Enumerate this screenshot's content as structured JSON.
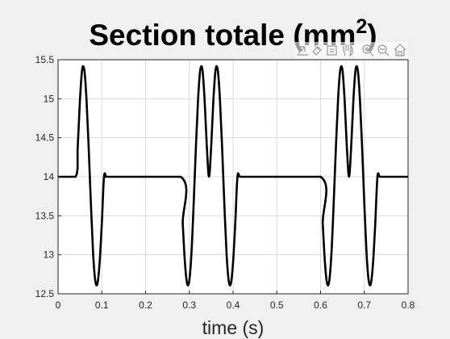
{
  "chart_data": {
    "type": "line",
    "title": "Section totale (mm",
    "title_superscript": "2",
    "title_suffix": ")",
    "xlabel": "time (s)",
    "ylabel": "",
    "xlim": [
      0,
      0.8
    ],
    "ylim": [
      12.5,
      15.5
    ],
    "xticks": [
      0,
      0.1,
      0.2,
      0.3,
      0.4,
      0.5,
      0.6,
      0.7,
      0.8
    ],
    "xtick_labels": [
      "0",
      "0.1",
      "0.2",
      "0.3",
      "0.4",
      "0.5",
      "0.6",
      "0.7",
      "0.8"
    ],
    "yticks": [
      12.5,
      13,
      13.5,
      14,
      14.5,
      15,
      15.5
    ],
    "ytick_labels": [
      "12.5",
      "13",
      "13.5",
      "14",
      "14.5",
      "15",
      "15.5"
    ],
    "grid": true,
    "line_color": "#000000",
    "series": [
      {
        "x": [
          0,
          0.04,
          0.045,
          0.05,
          0.055,
          0.06,
          0.065,
          0.07,
          0.075,
          0.08,
          0.085,
          0.09,
          0.095,
          0.1,
          0.105,
          0.11,
          0.115,
          0.12,
          0.28,
          0.285,
          0.29,
          0.295,
          0.3,
          0.305,
          0.31,
          0.315,
          0.32,
          0.325,
          0.33,
          0.335,
          0.34,
          0.345,
          0.35,
          0.355,
          0.36,
          0.365,
          0.37,
          0.375,
          0.38,
          0.385,
          0.39,
          0.395,
          0.4,
          0.405,
          0.41,
          0.415,
          0.42,
          0.425,
          0.43,
          0.435,
          0.44,
          0.6,
          0.605,
          0.61,
          0.615,
          0.62,
          0.625,
          0.63,
          0.635,
          0.64,
          0.645,
          0.65,
          0.655,
          0.66,
          0.665,
          0.67,
          0.675,
          0.68,
          0.685,
          0.69,
          0.695,
          0.7,
          0.705,
          0.71,
          0.715,
          0.72,
          0.725,
          0.73,
          0.735,
          0.74,
          0.745,
          0.75,
          0.755,
          0.76,
          0.8
        ],
        "y": [
          14,
          14,
          14.39,
          14.98,
          15.37,
          15.37,
          14.99,
          14.37,
          13.66,
          13.03,
          12.67,
          12.63,
          12.9,
          13.4,
          14.0,
          14.0,
          14.0,
          14.0,
          14.0,
          13.4,
          12.9,
          12.63,
          12.67,
          13.03,
          13.66,
          14.37,
          14.99,
          15.37,
          15.37,
          14.98,
          14.39,
          14.0,
          14.39,
          14.98,
          15.37,
          15.37,
          14.99,
          14.37,
          13.66,
          13.03,
          12.67,
          12.63,
          12.9,
          13.4,
          14.0,
          14.0,
          14.0,
          14.0,
          14.0,
          14.0,
          14.0,
          14.0,
          13.4,
          12.9,
          12.63,
          12.67,
          13.03,
          13.66,
          14.37,
          14.99,
          15.37,
          15.37,
          14.98,
          14.39,
          14.0,
          14.39,
          14.98,
          15.37,
          15.37,
          14.99,
          14.37,
          13.66,
          13.03,
          12.67,
          12.63,
          12.9,
          13.4,
          14.0,
          14.0,
          14.0,
          14.0,
          14.0,
          14.0,
          14.0,
          14.0
        ]
      }
    ]
  },
  "toolbar": {
    "icons": [
      "export-icon",
      "brush-icon",
      "datatip-icon",
      "pan-icon",
      "zoom-in-icon",
      "zoom-out-icon",
      "home-icon"
    ]
  },
  "colors": {
    "figure_background": "#f0f0f0",
    "axes_background": "#ffffff",
    "grid": "#dcdcdc",
    "axis": "#262626"
  }
}
